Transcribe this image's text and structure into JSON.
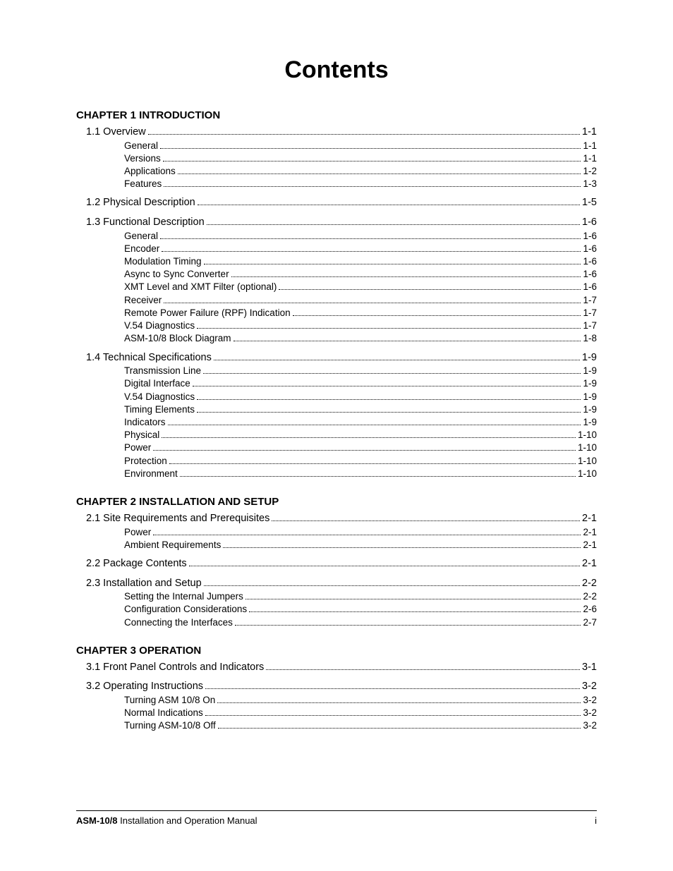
{
  "title": "Contents",
  "footer": {
    "product": "ASM-10/8",
    "rest": " Installation and Operation Manual",
    "page": "i"
  },
  "chapters": [
    {
      "heading": "CHAPTER 1  INTRODUCTION",
      "sections": [
        {
          "label": "1.1 Overview",
          "page": "1-1",
          "subs": [
            {
              "label": "General",
              "page": "1-1"
            },
            {
              "label": "Versions",
              "page": "1-1"
            },
            {
              "label": "Applications",
              "page": "1-2"
            },
            {
              "label": "Features",
              "page": "1-3"
            }
          ]
        },
        {
          "label": "1.2 Physical Description",
          "page": "1-5",
          "spaced": true,
          "subs": []
        },
        {
          "label": "1.3 Functional Description",
          "page": "1-6",
          "spaced": true,
          "subs": [
            {
              "label": "General",
              "page": "1-6"
            },
            {
              "label": "Encoder",
              "page": "1-6"
            },
            {
              "label": "Modulation Timing",
              "page": "1-6"
            },
            {
              "label": "Async to Sync Converter",
              "page": "1-6"
            },
            {
              "label": "XMT Level and XMT Filter (optional)",
              "page": "1-6"
            },
            {
              "label": "Receiver",
              "page": "1-7"
            },
            {
              "label": "Remote Power Failure (RPF) Indication",
              "page": "1-7"
            },
            {
              "label": "V.54 Diagnostics",
              "page": "1-7"
            },
            {
              "label": "ASM-10/8 Block Diagram",
              "page": "1-8"
            }
          ]
        },
        {
          "label": "1.4 Technical Specifications",
          "page": "1-9",
          "spaced": true,
          "subs": [
            {
              "label": "Transmission Line",
              "page": "1-9"
            },
            {
              "label": "Digital Interface",
              "page": "1-9"
            },
            {
              "label": "V.54 Diagnostics",
              "page": "1-9"
            },
            {
              "label": "Timing Elements",
              "page": "1-9"
            },
            {
              "label": "Indicators",
              "page": "1-9"
            },
            {
              "label": "Physical",
              "page": "1-10"
            },
            {
              "label": "Power",
              "page": "1-10"
            },
            {
              "label": "Protection",
              "page": "1-10"
            },
            {
              "label": "Environment",
              "page": "1-10"
            }
          ]
        }
      ]
    },
    {
      "heading": "CHAPTER 2  INSTALLATION AND SETUP",
      "sections": [
        {
          "label": "2.1 Site Requirements and Prerequisites",
          "page": "2-1",
          "subs": [
            {
              "label": "Power",
              "page": "2-1"
            },
            {
              "label": "Ambient Requirements",
              "page": "2-1"
            }
          ]
        },
        {
          "label": "2.2 Package Contents",
          "page": "2-1",
          "spaced": true,
          "subs": []
        },
        {
          "label": "2.3 Installation and Setup",
          "page": "2-2",
          "spaced": true,
          "subs": [
            {
              "label": "Setting the Internal Jumpers",
              "page": "2-2"
            },
            {
              "label": "Configuration Considerations",
              "page": "2-6"
            },
            {
              "label": "Connecting the Interfaces",
              "page": "2-7"
            }
          ]
        }
      ]
    },
    {
      "heading": "CHAPTER 3  OPERATION",
      "sections": [
        {
          "label": "3.1 Front Panel Controls and Indicators",
          "page": "3-1",
          "subs": []
        },
        {
          "label": "3.2 Operating Instructions",
          "page": "3-2",
          "spaced": true,
          "subs": [
            {
              "label": "Turning ASM 10/8 On",
              "page": "3-2"
            },
            {
              "label": "Normal Indications",
              "page": "3-2"
            },
            {
              "label": "Turning ASM-10/8 Off",
              "page": "3-2"
            }
          ]
        }
      ]
    }
  ]
}
